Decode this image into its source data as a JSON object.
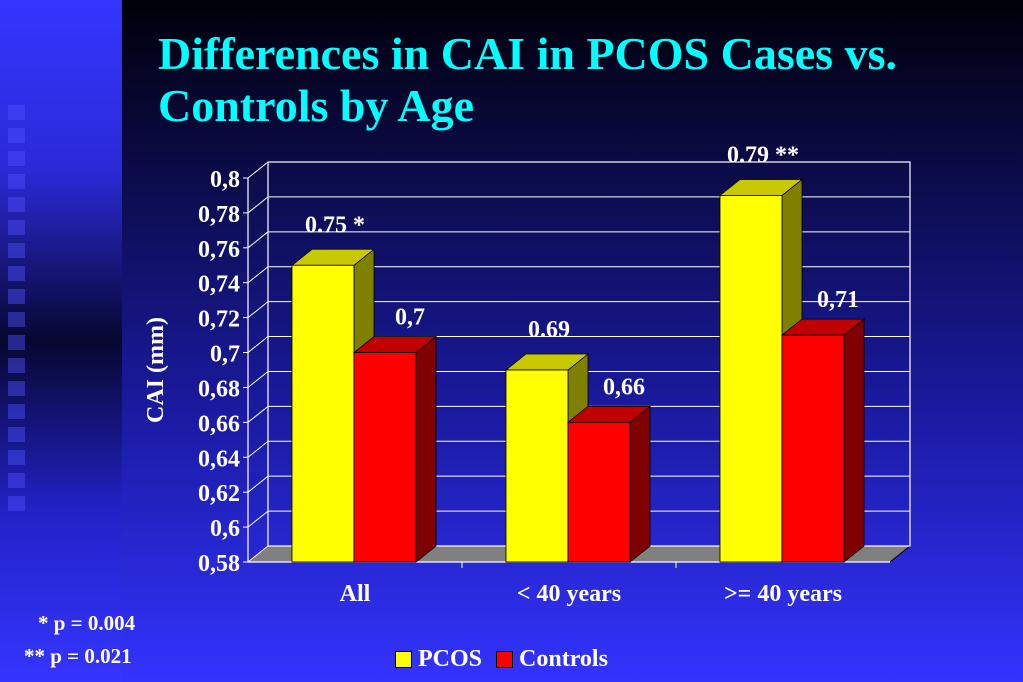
{
  "title": "Differences in CAI in PCOS Cases vs. Controls by Age",
  "notes": [
    "* p = 0.004",
    "** p = 0.021"
  ],
  "colors": {
    "title": "#00ffff",
    "pcos": "#ffff00",
    "controls": "#ff0000",
    "floor": "#808080"
  },
  "chart_data": {
    "type": "bar",
    "style": "3d-clustered",
    "categories": [
      "All",
      "< 40 years",
      ">= 40 years"
    ],
    "series": [
      {
        "name": "PCOS",
        "values": [
          0.75,
          0.69,
          0.79
        ],
        "labels": [
          "0.75 *",
          "0.69",
          "0.79 **"
        ]
      },
      {
        "name": "Controls",
        "values": [
          0.7,
          0.66,
          0.71
        ],
        "labels": [
          "0,7",
          "0,66",
          "0,71"
        ]
      }
    ],
    "ylabel": "CAI (mm)",
    "ylim": [
      0.58,
      0.8
    ],
    "yticks": [
      "0,58",
      "0,6",
      "0,62",
      "0,64",
      "0,66",
      "0,68",
      "0,7",
      "0,72",
      "0,74",
      "0,76",
      "0,78",
      "0,8"
    ],
    "grid": true,
    "legend": "bottom"
  }
}
